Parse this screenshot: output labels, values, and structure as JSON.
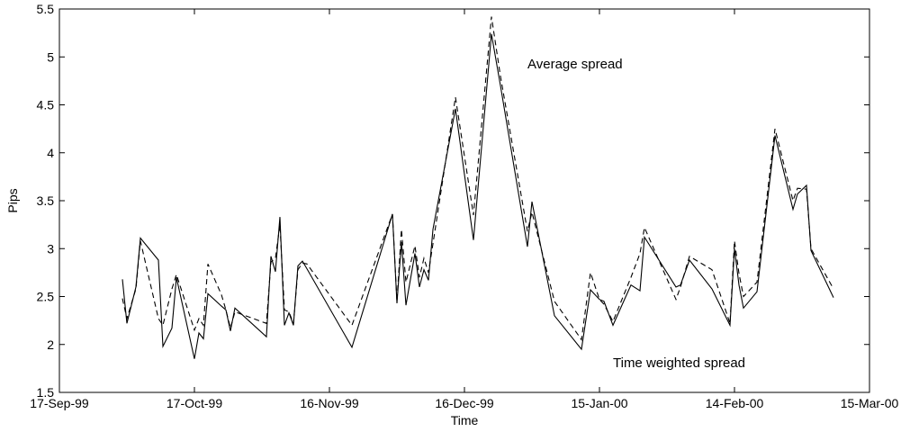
{
  "chart_data": {
    "type": "line",
    "title": "",
    "xlabel": "Time",
    "ylabel": "Pips",
    "x_ticks": [
      "17-Sep-99",
      "17-Oct-99",
      "16-Nov-99",
      "16-Dec-99",
      "15-Jan-00",
      "14-Feb-00",
      "15-Mar-00"
    ],
    "y_ticks": [
      "1.5",
      "2",
      "2.5",
      "3",
      "3.5",
      "4",
      "4.5",
      "5",
      "5.5"
    ],
    "xlim": [
      "1999-09-17",
      "2000-03-15"
    ],
    "ylim": [
      1.5,
      5.5
    ],
    "grid": false,
    "annotations": [
      "Average spread",
      "Time weighted spread"
    ],
    "series": [
      {
        "style": "solid",
        "x": [
          "1999-10-01",
          "1999-10-02",
          "1999-10-04",
          "1999-10-05",
          "1999-10-09",
          "1999-10-10",
          "1999-10-12",
          "1999-10-13",
          "1999-10-17",
          "1999-10-18",
          "1999-10-19",
          "1999-10-20",
          "1999-10-23",
          "1999-10-24",
          "1999-10-25",
          "1999-10-26",
          "1999-11-02",
          "1999-11-03",
          "1999-11-04",
          "1999-11-05",
          "1999-11-06",
          "1999-11-07",
          "1999-11-08",
          "1999-11-09",
          "1999-11-10",
          "1999-11-11",
          "1999-11-21",
          "1999-11-30",
          "1999-12-01",
          "1999-12-02",
          "1999-12-03",
          "1999-12-05",
          "1999-12-06",
          "1999-12-07",
          "1999-12-08",
          "1999-12-09",
          "1999-12-14",
          "1999-12-18",
          "1999-12-22",
          "1999-12-24",
          "1999-12-30",
          "1999-12-31",
          "2000-01-05",
          "2000-01-11",
          "2000-01-13",
          "2000-01-15",
          "2000-01-16",
          "2000-01-18",
          "2000-01-22",
          "2000-01-24",
          "2000-01-25",
          "2000-02-01",
          "2000-02-02",
          "2000-02-04",
          "2000-02-09",
          "2000-02-13",
          "2000-02-14",
          "2000-02-15",
          "2000-02-16",
          "2000-02-19",
          "2000-02-23",
          "2000-02-27",
          "2000-02-28",
          "2000-03-01",
          "2000-03-02",
          "2000-03-07"
        ],
        "y": [
          2.68,
          2.22,
          2.6,
          3.11,
          2.88,
          1.98,
          2.17,
          2.7,
          1.85,
          2.12,
          2.06,
          2.53,
          2.4,
          2.36,
          2.14,
          2.38,
          2.08,
          2.92,
          2.76,
          3.33,
          2.2,
          2.33,
          2.2,
          2.82,
          2.87,
          2.79,
          1.97,
          3.36,
          2.43,
          3.07,
          2.41,
          2.95,
          2.6,
          2.78,
          2.67,
          3.2,
          4.46,
          3.09,
          5.24,
          4.7,
          3.02,
          3.49,
          2.3,
          1.95,
          2.57,
          2.47,
          2.45,
          2.2,
          2.62,
          2.56,
          3.12,
          2.6,
          2.62,
          2.88,
          2.58,
          2.2,
          3.0,
          2.62,
          2.38,
          2.55,
          4.18,
          3.41,
          3.57,
          3.66,
          2.98,
          2.49
        ]
      },
      {
        "style": "dashed",
        "x": [
          "1999-10-01",
          "1999-10-02",
          "1999-10-04",
          "1999-10-05",
          "1999-10-09",
          "1999-10-10",
          "1999-10-12",
          "1999-10-13",
          "1999-10-17",
          "1999-10-18",
          "1999-10-19",
          "1999-10-20",
          "1999-10-23",
          "1999-10-24",
          "1999-10-25",
          "1999-10-26",
          "1999-11-02",
          "1999-11-03",
          "1999-11-04",
          "1999-11-05",
          "1999-11-06",
          "1999-11-07",
          "1999-11-08",
          "1999-11-09",
          "1999-11-10",
          "1999-11-11",
          "1999-11-21",
          "1999-11-30",
          "1999-12-01",
          "1999-12-02",
          "1999-12-03",
          "1999-12-05",
          "1999-12-06",
          "1999-12-07",
          "1999-12-08",
          "1999-12-09",
          "1999-12-14",
          "1999-12-18",
          "1999-12-22",
          "1999-12-24",
          "1999-12-30",
          "1999-12-31",
          "2000-01-05",
          "2000-01-11",
          "2000-01-13",
          "2000-01-15",
          "2000-01-16",
          "2000-01-18",
          "2000-01-22",
          "2000-01-24",
          "2000-01-25",
          "2000-02-01",
          "2000-02-02",
          "2000-02-04",
          "2000-02-09",
          "2000-02-13",
          "2000-02-14",
          "2000-02-15",
          "2000-02-16",
          "2000-02-19",
          "2000-02-23",
          "2000-02-27",
          "2000-02-28",
          "2000-03-01",
          "2000-03-02",
          "2000-03-07"
        ],
        "y": [
          2.48,
          2.27,
          2.58,
          3.08,
          2.27,
          2.2,
          2.58,
          2.73,
          2.15,
          2.27,
          2.2,
          2.84,
          2.52,
          2.36,
          2.17,
          2.34,
          2.22,
          2.86,
          2.9,
          3.25,
          2.36,
          2.34,
          2.22,
          2.78,
          2.85,
          2.84,
          2.2,
          3.36,
          2.45,
          3.2,
          2.65,
          3.03,
          2.7,
          2.9,
          2.75,
          3.05,
          4.58,
          3.35,
          5.42,
          4.8,
          3.18,
          3.38,
          2.45,
          2.05,
          2.75,
          2.47,
          2.42,
          2.24,
          2.7,
          2.95,
          3.22,
          2.47,
          2.6,
          2.92,
          2.78,
          2.22,
          3.08,
          2.74,
          2.5,
          2.65,
          4.25,
          3.5,
          3.63,
          3.62,
          3.0,
          2.58
        ]
      }
    ]
  }
}
